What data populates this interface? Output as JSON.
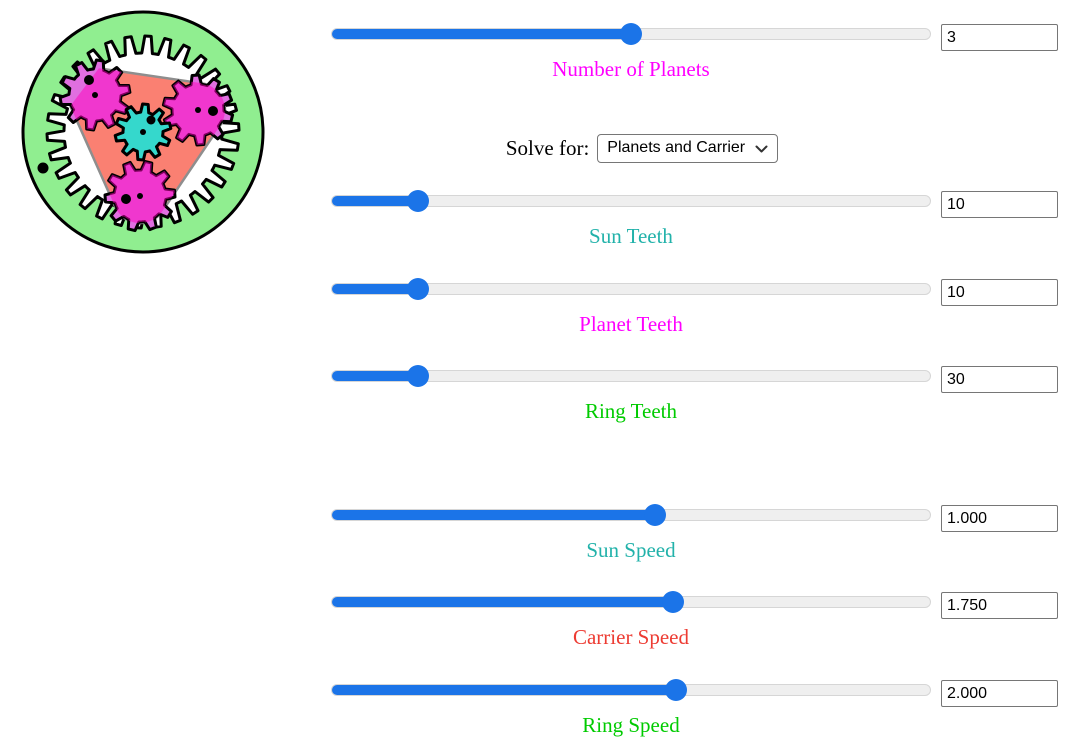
{
  "figure": {
    "name": "planetary-gear-animation",
    "colors": {
      "frame_green": "#90ee90",
      "hole_white": "#ffffff",
      "carrier_salmon": "#fa8072",
      "carrier_outline": "#8e8e8e",
      "sun_cyan": "#35d8cc",
      "planet_orchid": "#e06fe0",
      "planet_wedge_magenta": "#ff00bb",
      "outline_black": "#000000"
    }
  },
  "controls": {
    "slider_accent": "#1b74e8",
    "solve_for": {
      "label": "Solve for:",
      "selected": "Planets and Carrier"
    },
    "sliders": [
      {
        "id": "number-of-planets",
        "label": "Number of Planets",
        "value": "3",
        "color": "#ff00ff",
        "position_pct": 50
      },
      {
        "id": "sun-teeth",
        "label": "Sun Teeth",
        "value": "10",
        "color": "#22b2aa",
        "position_pct": 14.5
      },
      {
        "id": "planet-teeth",
        "label": "Planet Teeth",
        "value": "10",
        "color": "#ff00ff",
        "position_pct": 14.5
      },
      {
        "id": "ring-teeth",
        "label": "Ring Teeth",
        "value": "30",
        "color": "#00cb00",
        "position_pct": 14.5
      },
      {
        "id": "sun-speed",
        "label": "Sun Speed",
        "value": "1.000",
        "color": "#22b2aa",
        "position_pct": 54
      },
      {
        "id": "carrier-speed",
        "label": "Carrier Speed",
        "value": "1.750",
        "color": "#ed3b32",
        "position_pct": 57
      },
      {
        "id": "ring-speed",
        "label": "Ring Speed",
        "value": "2.000",
        "color": "#00cb00",
        "position_pct": 57.5
      }
    ]
  }
}
